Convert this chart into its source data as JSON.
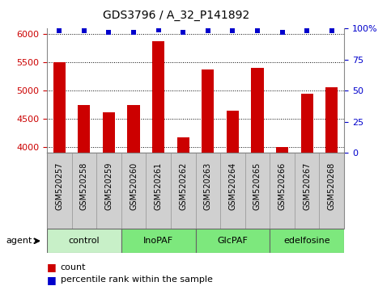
{
  "title": "GDS3796 / A_32_P141892",
  "samples": [
    "GSM520257",
    "GSM520258",
    "GSM520259",
    "GSM520260",
    "GSM520261",
    "GSM520262",
    "GSM520263",
    "GSM520264",
    "GSM520265",
    "GSM520266",
    "GSM520267",
    "GSM520268"
  ],
  "counts": [
    5500,
    4750,
    4620,
    4750,
    5870,
    4180,
    5370,
    4650,
    5400,
    4000,
    4950,
    5060
  ],
  "percentiles": [
    98,
    98,
    97,
    97,
    99,
    97,
    98,
    98,
    98,
    97,
    98,
    98
  ],
  "ylim_left": [
    3900,
    6100
  ],
  "ylim_right": [
    0,
    100
  ],
  "yticks_left": [
    4000,
    4500,
    5000,
    5500,
    6000
  ],
  "yticks_right": [
    0,
    25,
    50,
    75,
    100
  ],
  "ytick_labels_right": [
    "0",
    "25",
    "50",
    "75",
    "100%"
  ],
  "groups": [
    {
      "label": "control",
      "start": 0,
      "end": 3,
      "color": "#c8f0c8"
    },
    {
      "label": "InoPAF",
      "start": 3,
      "end": 6,
      "color": "#7de87d"
    },
    {
      "label": "GlcPAF",
      "start": 6,
      "end": 9,
      "color": "#7de87d"
    },
    {
      "label": "edelfosine",
      "start": 9,
      "end": 12,
      "color": "#7de87d"
    }
  ],
  "bar_color": "#cc0000",
  "dot_color": "#0000cc",
  "plot_bg_color": "#ffffff",
  "left_tick_color": "#cc0000",
  "right_tick_color": "#0000cc",
  "bar_width": 0.5,
  "legend_count_color": "#cc0000",
  "legend_pct_color": "#0000cc",
  "sample_box_color": "#d0d0d0",
  "group_border_color": "#666666"
}
